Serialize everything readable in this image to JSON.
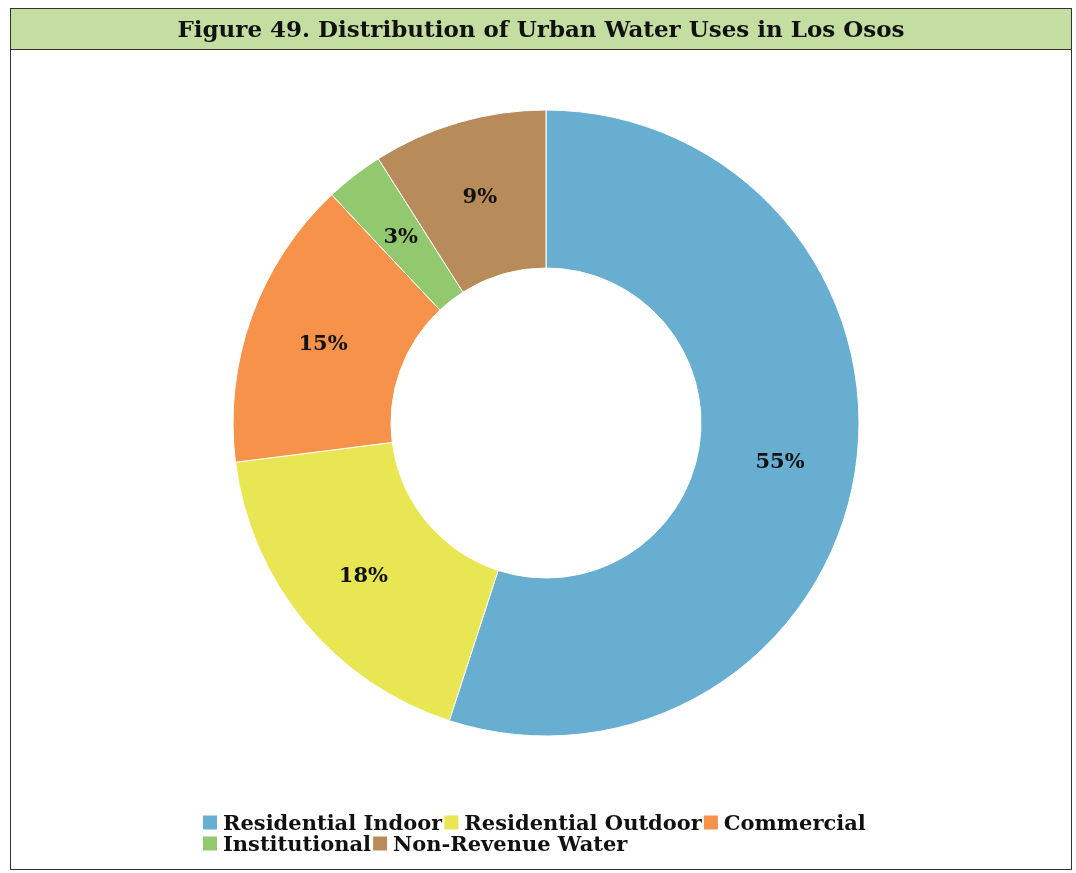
{
  "chart_data": {
    "type": "donut",
    "title": "Figure 49.  Distribution of Urban Water Uses in Los Osos",
    "categories": [
      "Residential Indoor",
      "Residential Outdoor",
      "Commercial",
      "Institutional",
      "Non-Revenue Water"
    ],
    "values": [
      55,
      18,
      15,
      3,
      9
    ],
    "colors": [
      "#67aed1",
      "#e8e652",
      "#f6924a",
      "#92c96e",
      "#b88c5a"
    ],
    "value_labels": [
      "55%",
      "18%",
      "15%",
      "3%",
      "9%"
    ],
    "legend": "bottom"
  }
}
